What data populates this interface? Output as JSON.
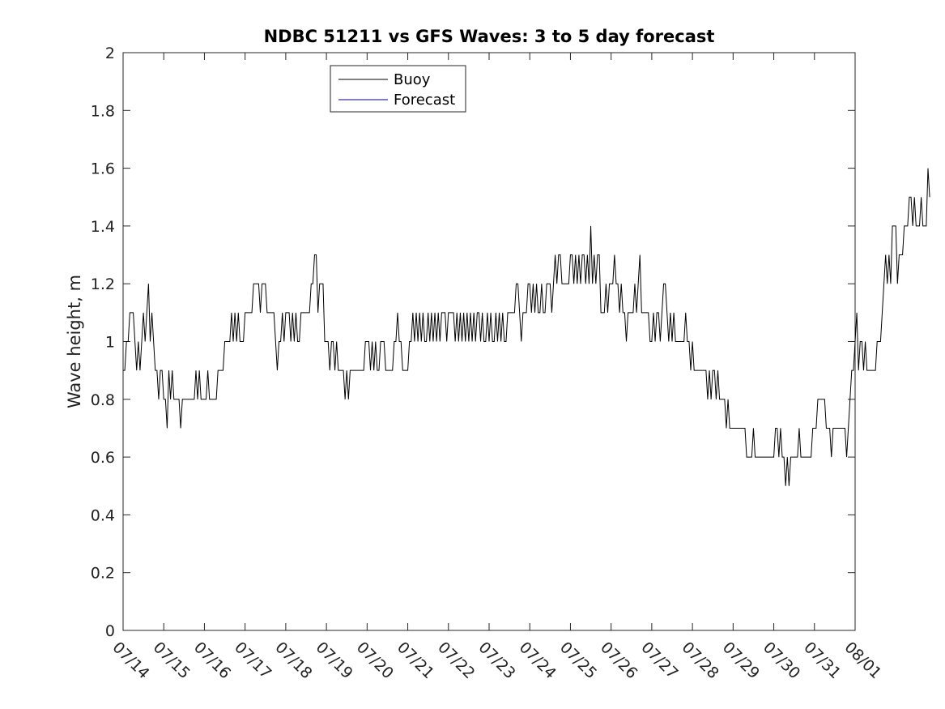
{
  "chart_data": {
    "type": "line",
    "title": "NDBC 51211 vs GFS Waves: 3 to 5 day forecast",
    "xlabel": "",
    "ylabel": "Wave height, m",
    "x_ticks": [
      "07/14",
      "07/15",
      "07/16",
      "07/17",
      "07/18",
      "07/19",
      "07/20",
      "07/21",
      "07/22",
      "07/23",
      "07/24",
      "07/25",
      "07/26",
      "07/27",
      "07/28",
      "07/29",
      "07/30",
      "07/31",
      "08/01"
    ],
    "y_ticks": [
      "0",
      "0.2",
      "0.4",
      "0.6",
      "0.8",
      "1",
      "1.2",
      "1.4",
      "1.6",
      "1.8",
      "2"
    ],
    "xlim": [
      "07/14",
      "08/01"
    ],
    "ylim": [
      0,
      2
    ],
    "grid": false,
    "legend_position": "top-left",
    "colors": {
      "buoy": "#000000",
      "forecast": "#000080"
    },
    "series": [
      {
        "name": "Buoy",
        "x_start": "07/14",
        "step_hours": 1,
        "values": [
          0.9,
          0.9,
          1.0,
          1.0,
          1.1,
          1.1,
          1.1,
          1.0,
          0.9,
          1.0,
          0.9,
          1.0,
          1.1,
          1.0,
          1.1,
          1.2,
          1.0,
          1.1,
          1.0,
          0.9,
          0.9,
          0.8,
          0.9,
          0.9,
          0.8,
          0.8,
          0.7,
          0.9,
          0.8,
          0.9,
          0.8,
          0.8,
          0.8,
          0.8,
          0.7,
          0.8,
          0.8,
          0.8,
          0.8,
          0.8,
          0.8,
          0.8,
          0.8,
          0.9,
          0.8,
          0.9,
          0.8,
          0.8,
          0.8,
          0.8,
          0.9,
          0.8,
          0.8,
          0.8,
          0.8,
          0.8,
          0.9,
          0.9,
          0.9,
          0.9,
          1.0,
          1.0,
          1.0,
          1.0,
          1.1,
          1.0,
          1.1,
          1.0,
          1.1,
          1.0,
          1.0,
          1.0,
          1.1,
          1.1,
          1.1,
          1.1,
          1.1,
          1.2,
          1.2,
          1.2,
          1.2,
          1.1,
          1.2,
          1.2,
          1.2,
          1.1,
          1.1,
          1.1,
          1.1,
          1.1,
          1.0,
          0.9,
          1.0,
          1.0,
          1.1,
          1.0,
          1.1,
          1.1,
          1.1,
          1.0,
          1.1,
          1.0,
          1.1,
          1.0,
          1.0,
          1.1,
          1.1,
          1.1,
          1.1,
          1.1,
          1.1,
          1.2,
          1.2,
          1.3,
          1.3,
          1.1,
          1.2,
          1.2,
          1.2,
          1.0,
          1.0,
          1.0,
          0.9,
          1.0,
          1.0,
          0.9,
          1.0,
          0.9,
          0.9,
          0.9,
          0.9,
          0.8,
          0.9,
          0.8,
          0.9,
          0.9,
          0.9,
          0.9,
          0.9,
          0.9,
          0.9,
          0.9,
          0.9,
          1.0,
          1.0,
          1.0,
          0.9,
          1.0,
          0.9,
          1.0,
          0.9,
          0.9,
          1.0,
          1.0,
          1.0,
          0.9,
          0.9,
          0.9,
          0.9,
          0.9,
          1.0,
          1.0,
          1.1,
          1.0,
          1.0,
          0.9,
          0.9,
          0.9,
          0.9,
          1.0,
          1.0,
          1.1,
          1.0,
          1.1,
          1.0,
          1.1,
          1.0,
          1.1,
          1.0,
          1.0,
          1.1,
          1.0,
          1.1,
          1.0,
          1.1,
          1.0,
          1.1,
          1.0,
          1.1,
          1.1,
          1.1,
          1.0,
          1.1,
          1.1,
          1.1,
          1.1,
          1.0,
          1.1,
          1.0,
          1.1,
          1.0,
          1.1,
          1.0,
          1.1,
          1.0,
          1.1,
          1.0,
          1.1,
          1.0,
          1.1,
          1.1,
          1.0,
          1.1,
          1.0,
          1.0,
          1.1,
          1.0,
          1.1,
          1.0,
          1.0,
          1.1,
          1.0,
          1.1,
          1.0,
          1.1,
          1.0,
          1.0,
          1.1,
          1.1,
          1.1,
          1.1,
          1.1,
          1.2,
          1.2,
          1.1,
          1.0,
          1.1,
          1.1,
          1.1,
          1.2,
          1.2,
          1.1,
          1.2,
          1.1,
          1.2,
          1.1,
          1.1,
          1.2,
          1.1,
          1.1,
          1.2,
          1.2,
          1.2,
          1.1,
          1.2,
          1.3,
          1.2,
          1.3,
          1.3,
          1.2,
          1.2,
          1.2,
          1.2,
          1.2,
          1.3,
          1.3,
          1.2,
          1.3,
          1.2,
          1.3,
          1.2,
          1.3,
          1.3,
          1.2,
          1.3,
          1.2,
          1.4,
          1.2,
          1.3,
          1.2,
          1.3,
          1.3,
          1.1,
          1.1,
          1.1,
          1.2,
          1.1,
          1.2,
          1.2,
          1.2,
          1.3,
          1.2,
          1.2,
          1.1,
          1.2,
          1.1,
          1.1,
          1.0,
          1.1,
          1.1,
          1.1,
          1.1,
          1.2,
          1.1,
          1.2,
          1.3,
          1.1,
          1.1,
          1.1,
          1.1,
          1.1,
          1.0,
          1.0,
          1.1,
          1.0,
          1.1,
          1.1,
          1.0,
          1.1,
          1.2,
          1.2,
          1.1,
          1.0,
          1.1,
          1.0,
          1.1,
          1.0,
          1.0,
          1.0,
          1.0,
          1.0,
          1.0,
          1.1,
          1.0,
          1.0,
          0.9,
          1.0,
          0.9,
          0.9,
          0.9,
          0.9,
          0.9,
          0.9,
          0.9,
          0.9,
          0.8,
          0.9,
          0.8,
          0.9,
          0.9,
          0.8,
          0.9,
          0.8,
          0.8,
          0.8,
          0.8,
          0.7,
          0.8,
          0.7,
          0.7,
          0.7,
          0.7,
          0.7,
          0.7,
          0.7,
          0.7,
          0.7,
          0.7,
          0.6,
          0.6,
          0.6,
          0.6,
          0.7,
          0.6,
          0.6,
          0.6,
          0.6,
          0.6,
          0.6,
          0.6,
          0.6,
          0.6,
          0.6,
          0.6,
          0.6,
          0.7,
          0.7,
          0.6,
          0.7,
          0.6,
          0.6,
          0.5,
          0.6,
          0.5,
          0.6,
          0.6,
          0.6,
          0.6,
          0.6,
          0.7,
          0.6,
          0.6,
          0.6,
          0.6,
          0.6,
          0.6,
          0.6,
          0.7,
          0.7,
          0.7,
          0.8,
          0.8,
          0.8,
          0.8,
          0.8,
          0.7,
          0.7,
          0.7,
          0.6,
          0.7,
          0.7,
          0.7,
          0.7,
          0.7,
          0.7,
          0.7,
          0.7,
          0.6,
          0.7,
          0.8,
          0.9,
          0.9,
          1.0,
          1.1,
          0.9,
          1.0,
          1.0,
          0.9,
          1.0,
          0.9,
          0.9,
          0.9,
          0.9,
          0.9,
          0.9,
          1.0,
          1.0,
          1.0,
          1.1,
          1.2,
          1.3,
          1.2,
          1.3,
          1.2,
          1.4,
          1.4,
          1.4,
          1.2,
          1.3,
          1.3,
          1.3,
          1.4,
          1.4,
          1.4,
          1.5,
          1.5,
          1.4,
          1.5,
          1.4,
          1.4,
          1.4,
          1.5,
          1.4,
          1.4,
          1.4,
          1.6,
          1.5
        ]
      },
      {
        "name": "Forecast",
        "values": []
      }
    ]
  }
}
